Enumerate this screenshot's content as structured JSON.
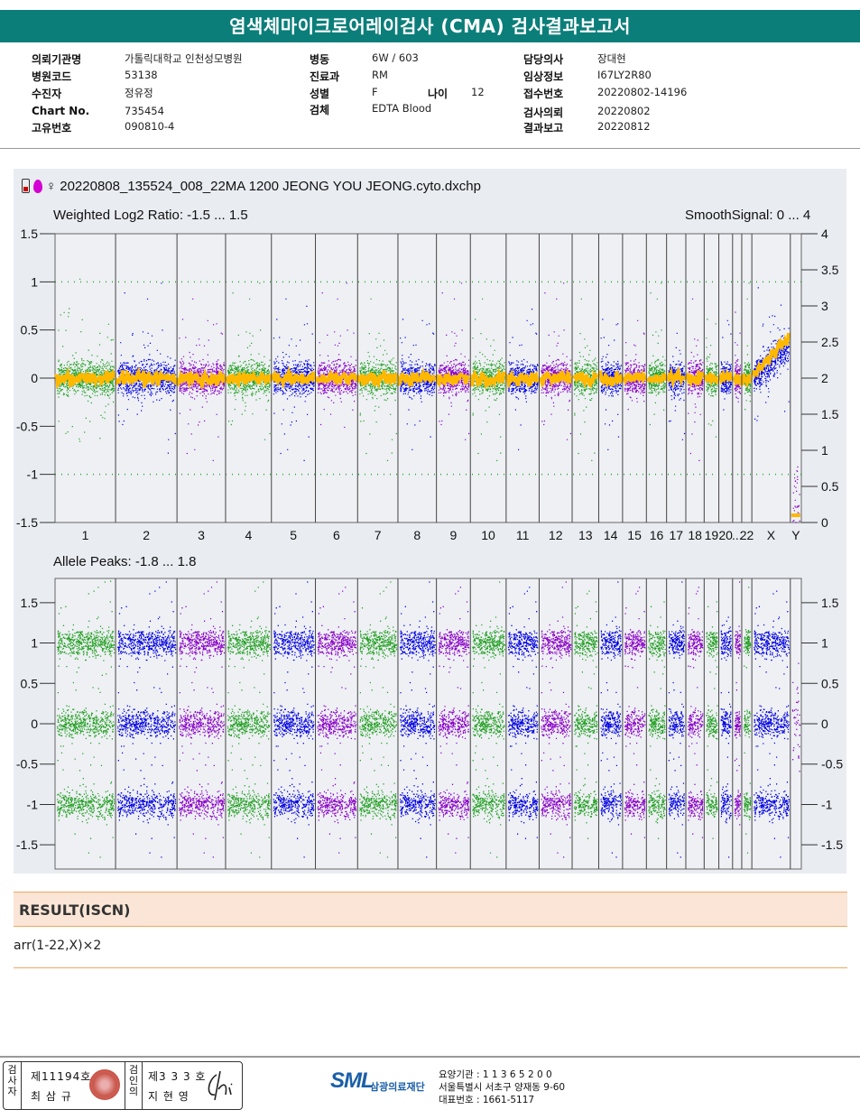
{
  "header": {
    "title": "염색체마이크로어레이검사 (CMA) 검사결과보고서"
  },
  "info": {
    "col1": [
      {
        "label": "의뢰기관명",
        "value": "가톨릭대학교 인천성모병원"
      },
      {
        "label": "병원코드",
        "value": "53138"
      },
      {
        "label": "수진자",
        "value": "정유정"
      },
      {
        "label": "Chart No.",
        "value": "735454"
      },
      {
        "label": "고유번호",
        "value": "090810-4"
      }
    ],
    "col2": [
      {
        "label": "병동",
        "value": "6W / 603"
      },
      {
        "label": "진료과",
        "value": "RM"
      },
      {
        "label": "성별",
        "value": "F"
      },
      {
        "label": "검체",
        "value": "EDTA Blood"
      }
    ],
    "age": {
      "label": "나이",
      "value": "12"
    },
    "col3": [
      {
        "label": "담당의사",
        "value": "장대현"
      },
      {
        "label": "임상정보",
        "value": "I67LY2R80"
      },
      {
        "label": "접수번호",
        "value": "20220802-14196"
      },
      {
        "label": "검사의뢰",
        "value": "20220802"
      },
      {
        "label": "결과보고",
        "value": "20220812"
      }
    ]
  },
  "plot": {
    "filename": "20220808_135524_008_22MA 1200 JEONG YOU JEONG.cyto.dxchp",
    "sex_symbol": "♀",
    "top_label_left": "Weighted Log2 Ratio: -1.5 ... 1.5",
    "top_label_right": "SmoothSignal: 0 ... 4",
    "bottom_label": "Allele Peaks: -1.8 ... 1.8",
    "icons": [
      "battery-icon",
      "map-pin-icon",
      "female-icon"
    ]
  },
  "chart_data": [
    {
      "type": "scatter",
      "title": "Weighted Log2 Ratio: -1.5 ... 1.5",
      "y_left_ticks": [
        "1.5",
        "1",
        "0.5",
        "0",
        "-0.5",
        "-1",
        "-1.5"
      ],
      "y_right_ticks": [
        "4",
        "3.5",
        "3",
        "2.5",
        "2",
        "1.5",
        "1",
        "0.5",
        "0"
      ],
      "ylim_left": [
        -1.5,
        1.5
      ],
      "ylim_right": [
        0,
        4
      ],
      "categories": [
        "1",
        "2",
        "3",
        "4",
        "5",
        "6",
        "7",
        "8",
        "9",
        "10",
        "11",
        "12",
        "13",
        "14",
        "15",
        "16",
        "17",
        "18",
        "19",
        "20",
        "21",
        "22",
        "X",
        "Y"
      ],
      "x_tick_labels": [
        "1",
        "2",
        "3",
        "4",
        "5",
        "6",
        "7",
        "8",
        "9",
        "10",
        "11",
        "12",
        "13",
        "14",
        "15",
        "16",
        "17",
        "18",
        "19",
        "20",
        "...",
        "22",
        "X",
        "Y"
      ],
      "series": [
        {
          "name": "Weighted Log2 Ratio",
          "values": [
            0,
            0,
            0,
            0,
            0,
            0,
            0,
            0,
            0,
            0,
            0,
            0,
            0,
            0,
            0,
            0,
            0,
            0,
            0,
            0,
            0,
            0,
            0,
            -1.5
          ]
        },
        {
          "name": "SmoothSignal",
          "values": [
            2,
            2,
            2,
            2,
            2,
            2,
            2,
            2,
            2,
            2,
            2,
            2,
            2,
            2,
            2,
            2,
            2,
            2,
            2,
            2,
            2,
            2,
            2,
            0
          ]
        }
      ],
      "chromosome_colors": [
        "#22a022",
        "#0000e0",
        "#8a00c8"
      ],
      "smooth_color": "#ffb800"
    },
    {
      "type": "scatter",
      "title": "Allele Peaks: -1.8 ... 1.8",
      "y_left_ticks": [
        "1.5",
        "1",
        "0.5",
        "0",
        "-0.5",
        "-1",
        "-1.5"
      ],
      "y_right_ticks": [
        "1.5",
        "1",
        "0.5",
        "0",
        "-0.5",
        "-1",
        "-1.5"
      ],
      "ylim": [
        -1.8,
        1.8
      ],
      "categories": [
        "1",
        "2",
        "3",
        "4",
        "5",
        "6",
        "7",
        "8",
        "9",
        "10",
        "11",
        "12",
        "13",
        "14",
        "15",
        "16",
        "17",
        "18",
        "19",
        "20",
        "21",
        "22",
        "X",
        "Y"
      ],
      "peak_bands": [
        1.0,
        0,
        -1.0
      ]
    }
  ],
  "result": {
    "heading": "RESULT(ISCN)",
    "value": "arr(1-22,X)×2"
  },
  "footer": {
    "inspector_label": "검사자",
    "inspector_no": "제11194호",
    "inspector_name": "최 삼 규",
    "confirm_label": "검인의",
    "confirm_no": "제3 3 3 호",
    "confirm_name": "지 현 영",
    "logo_text": "SML",
    "logo_sub": "삼광의료재단",
    "org_lines": [
      "요양기관 : 1 1 3 6 5 2 0 0",
      "서울특별시 서초구 양재동 9-60",
      "대표번호 : 1661-5117"
    ]
  }
}
